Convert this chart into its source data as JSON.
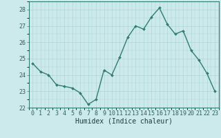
{
  "x": [
    0,
    1,
    2,
    3,
    4,
    5,
    6,
    7,
    8,
    9,
    10,
    11,
    12,
    13,
    14,
    15,
    16,
    17,
    18,
    19,
    20,
    21,
    22,
    23
  ],
  "y": [
    24.7,
    24.2,
    24.0,
    23.4,
    23.3,
    23.2,
    22.9,
    22.2,
    22.5,
    24.3,
    24.0,
    25.1,
    26.3,
    27.0,
    26.8,
    27.55,
    28.1,
    27.1,
    26.5,
    26.7,
    25.5,
    24.9,
    24.1,
    23.0
  ],
  "line_color": "#2e7d6e",
  "marker": "D",
  "marker_size": 2.0,
  "line_width": 1.0,
  "bg_color": "#cce9eb",
  "grid_color": "#aed4d6",
  "xlabel": "Humidex (Indice chaleur)",
  "xlabel_fontsize": 7,
  "tick_fontsize": 6,
  "ylim": [
    22,
    28.5
  ],
  "yticks": [
    22,
    23,
    24,
    25,
    26,
    27,
    28
  ],
  "xlim": [
    -0.5,
    23.5
  ],
  "xticks": [
    0,
    1,
    2,
    3,
    4,
    5,
    6,
    7,
    8,
    9,
    10,
    11,
    12,
    13,
    14,
    15,
    16,
    17,
    18,
    19,
    20,
    21,
    22,
    23
  ]
}
